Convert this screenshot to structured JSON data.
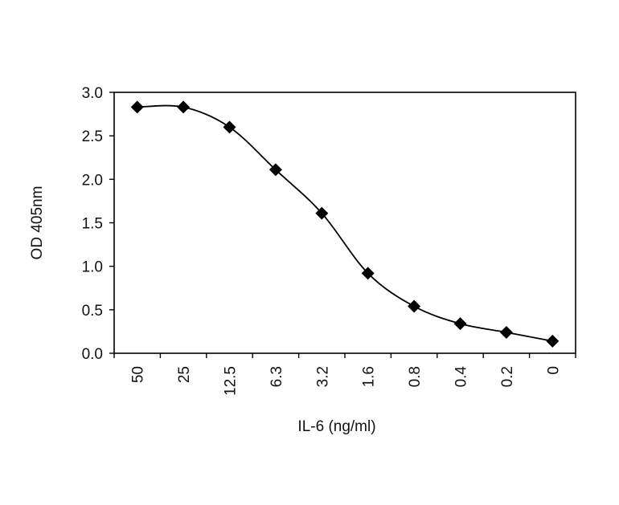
{
  "chart_data": {
    "type": "line",
    "title": "",
    "xlabel": "IL-6 (ng/ml)",
    "ylabel": "OD 405nm",
    "categories": [
      "50",
      "25",
      "12.5",
      "6.3",
      "3.2",
      "1.6",
      "0.8",
      "0.4",
      "0.2",
      "0"
    ],
    "series": [
      {
        "values": [
          2.83,
          2.83,
          2.6,
          2.11,
          1.61,
          0.92,
          0.54,
          0.34,
          0.24,
          0.14
        ],
        "color": "#000000",
        "marker": "diamond"
      }
    ],
    "ylim": [
      0,
      3.0
    ],
    "yticks": [
      "0.0",
      "0.5",
      "1.0",
      "1.5",
      "2.0",
      "2.5",
      "3.0"
    ],
    "grid": false,
    "legend": "none"
  }
}
